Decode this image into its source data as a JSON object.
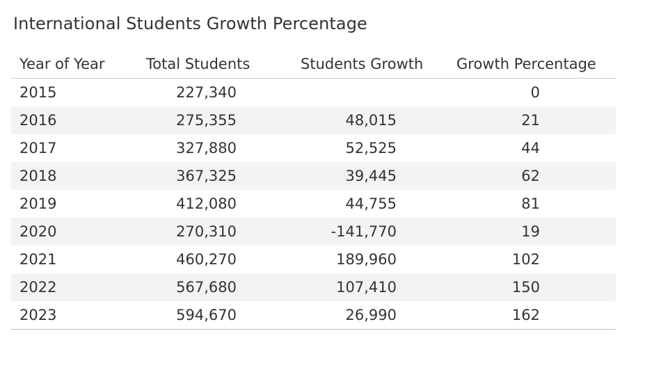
{
  "title": "International Students Growth Percentage",
  "chart_data": {
    "type": "table",
    "title": "International Students Growth Percentage",
    "columns": [
      "Year of Year",
      "Total Students",
      "Students Growth",
      "Growth Percentage"
    ],
    "rows": [
      {
        "year": "2015",
        "total": "227,340",
        "growth": "",
        "pct": "0"
      },
      {
        "year": "2016",
        "total": "275,355",
        "growth": "48,015",
        "pct": "21"
      },
      {
        "year": "2017",
        "total": "327,880",
        "growth": "52,525",
        "pct": "44"
      },
      {
        "year": "2018",
        "total": "367,325",
        "growth": "39,445",
        "pct": "62"
      },
      {
        "year": "2019",
        "total": "412,080",
        "growth": "44,755",
        "pct": "81"
      },
      {
        "year": "2020",
        "total": "270,310",
        "growth": "-141,770",
        "pct": "19"
      },
      {
        "year": "2021",
        "total": "460,270",
        "growth": "189,960",
        "pct": "102"
      },
      {
        "year": "2022",
        "total": "567,680",
        "growth": "107,410",
        "pct": "150"
      },
      {
        "year": "2023",
        "total": "594,670",
        "growth": "26,990",
        "pct": "162"
      }
    ],
    "banded_rows": true
  }
}
